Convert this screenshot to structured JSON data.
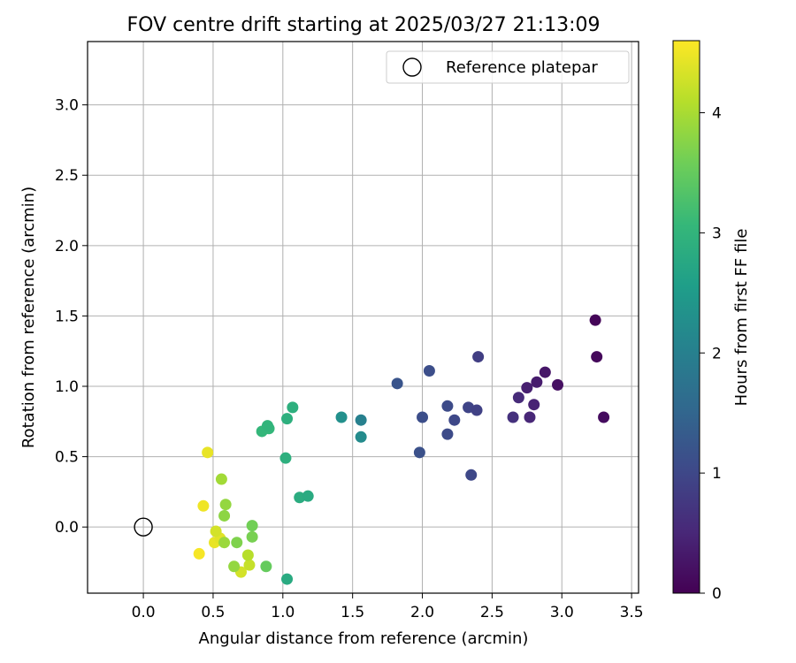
{
  "chart_data": {
    "type": "scatter",
    "title": "FOV centre drift starting at 2025/03/27 21:13:09",
    "xlabel": "Angular distance from reference (arcmin)",
    "ylabel": "Rotation from reference (arcmin)",
    "xlim": [
      -0.4,
      3.55
    ],
    "ylim": [
      -0.47,
      3.45
    ],
    "xticks": [
      0.0,
      0.5,
      1.0,
      1.5,
      2.0,
      2.5,
      3.0,
      3.5
    ],
    "xtick_labels": [
      "0.0",
      "0.5",
      "1.0",
      "1.5",
      "2.0",
      "2.5",
      "3.0",
      "3.5"
    ],
    "yticks": [
      0.0,
      0.5,
      1.0,
      1.5,
      2.0,
      2.5,
      3.0
    ],
    "ytick_labels": [
      "0.0",
      "0.5",
      "1.0",
      "1.5",
      "2.0",
      "2.5",
      "3.0"
    ],
    "grid": true,
    "legend": {
      "placement": "top-right",
      "entries": [
        {
          "label": "Reference platepar",
          "marker": "open-circle"
        }
      ]
    },
    "reference_point": {
      "x": 0.0,
      "y": 0.0
    },
    "colorbar": {
      "label": "Hours from first FF file",
      "colormap": "viridis",
      "range": [
        0,
        4.6
      ],
      "ticks": [
        0,
        1,
        2,
        3,
        4
      ],
      "tick_labels": [
        "0",
        "1",
        "2",
        "3",
        "4"
      ],
      "colors": [
        "#440154",
        "#482878",
        "#3e4989",
        "#31688e",
        "#26828e",
        "#1f9e89",
        "#35b779",
        "#6ece58",
        "#b5de2b",
        "#fde725"
      ]
    },
    "points": [
      {
        "x": 3.24,
        "y": 1.47,
        "t": 0.05
      },
      {
        "x": 3.25,
        "y": 1.21,
        "t": 0.1
      },
      {
        "x": 3.3,
        "y": 0.78,
        "t": 0.15
      },
      {
        "x": 2.97,
        "y": 1.01,
        "t": 0.2
      },
      {
        "x": 2.88,
        "y": 1.1,
        "t": 0.28
      },
      {
        "x": 2.82,
        "y": 1.03,
        "t": 0.35
      },
      {
        "x": 2.75,
        "y": 0.99,
        "t": 0.4
      },
      {
        "x": 2.8,
        "y": 0.87,
        "t": 0.45
      },
      {
        "x": 2.77,
        "y": 0.78,
        "t": 0.5
      },
      {
        "x": 2.69,
        "y": 0.92,
        "t": 0.55
      },
      {
        "x": 2.65,
        "y": 0.78,
        "t": 0.65
      },
      {
        "x": 2.4,
        "y": 1.21,
        "t": 0.85
      },
      {
        "x": 2.39,
        "y": 0.83,
        "t": 0.9
      },
      {
        "x": 2.33,
        "y": 0.85,
        "t": 0.95
      },
      {
        "x": 2.35,
        "y": 0.37,
        "t": 1.0
      },
      {
        "x": 2.23,
        "y": 0.76,
        "t": 1.0
      },
      {
        "x": 2.18,
        "y": 0.86,
        "t": 1.05
      },
      {
        "x": 2.18,
        "y": 0.66,
        "t": 1.05
      },
      {
        "x": 2.05,
        "y": 1.11,
        "t": 1.1
      },
      {
        "x": 2.0,
        "y": 0.78,
        "t": 1.1
      },
      {
        "x": 1.98,
        "y": 0.53,
        "t": 1.15
      },
      {
        "x": 1.82,
        "y": 1.02,
        "t": 1.2
      },
      {
        "x": 1.56,
        "y": 0.76,
        "t": 2.0
      },
      {
        "x": 1.56,
        "y": 0.64,
        "t": 2.2
      },
      {
        "x": 1.42,
        "y": 0.78,
        "t": 2.3
      },
      {
        "x": 1.03,
        "y": -0.37,
        "t": 2.8
      },
      {
        "x": 1.18,
        "y": 0.22,
        "t": 2.8
      },
      {
        "x": 1.12,
        "y": 0.21,
        "t": 2.85
      },
      {
        "x": 1.07,
        "y": 0.85,
        "t": 2.9
      },
      {
        "x": 1.03,
        "y": 0.77,
        "t": 2.9
      },
      {
        "x": 1.02,
        "y": 0.49,
        "t": 2.9
      },
      {
        "x": 0.89,
        "y": 0.72,
        "t": 3.0
      },
      {
        "x": 0.9,
        "y": 0.7,
        "t": 3.05
      },
      {
        "x": 0.85,
        "y": 0.68,
        "t": 3.05
      },
      {
        "x": 0.88,
        "y": -0.28,
        "t": 3.5
      },
      {
        "x": 0.78,
        "y": 0.01,
        "t": 3.6
      },
      {
        "x": 0.78,
        "y": -0.07,
        "t": 3.65
      },
      {
        "x": 0.67,
        "y": -0.11,
        "t": 3.7
      },
      {
        "x": 0.65,
        "y": -0.28,
        "t": 3.85
      },
      {
        "x": 0.58,
        "y": 0.08,
        "t": 3.8
      },
      {
        "x": 0.59,
        "y": 0.16,
        "t": 3.85
      },
      {
        "x": 0.56,
        "y": 0.34,
        "t": 3.95
      },
      {
        "x": 0.58,
        "y": -0.11,
        "t": 3.9
      },
      {
        "x": 0.75,
        "y": -0.2,
        "t": 4.1
      },
      {
        "x": 0.76,
        "y": -0.27,
        "t": 4.2
      },
      {
        "x": 0.7,
        "y": -0.32,
        "t": 4.3
      },
      {
        "x": 0.52,
        "y": -0.03,
        "t": 4.3
      },
      {
        "x": 0.55,
        "y": -0.08,
        "t": 4.4
      },
      {
        "x": 0.51,
        "y": -0.11,
        "t": 4.45
      },
      {
        "x": 0.46,
        "y": 0.53,
        "t": 4.45
      },
      {
        "x": 0.43,
        "y": 0.15,
        "t": 4.5
      },
      {
        "x": 0.4,
        "y": -0.19,
        "t": 4.55
      }
    ]
  }
}
